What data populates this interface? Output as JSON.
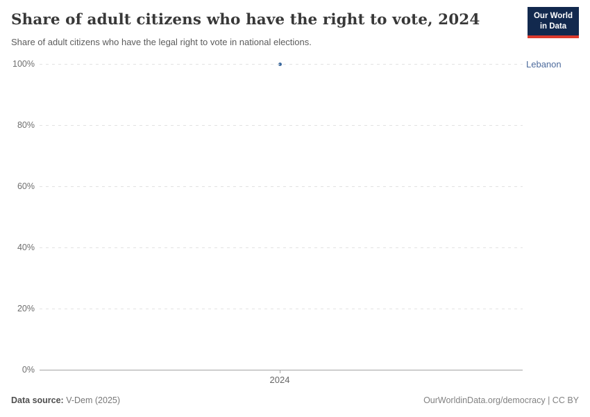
{
  "header": {
    "title": "Share of adult citizens who have the right to vote, 2024",
    "subtitle": "Share of adult citizens who have the legal right to vote in national elections.",
    "logo": {
      "line1": "Our World",
      "line2": "in Data"
    }
  },
  "chart_data": {
    "type": "scatter",
    "title": "Share of adult citizens who have the right to vote, 2024",
    "x": [
      2024
    ],
    "xtick_labels": [
      "2024"
    ],
    "series": [
      {
        "name": "Lebanon",
        "values": [
          100
        ]
      }
    ],
    "ylim": [
      0,
      100
    ],
    "yticks": [
      0,
      20,
      40,
      60,
      80,
      100
    ],
    "ytick_labels": [
      "0%",
      "20%",
      "40%",
      "60%",
      "80%",
      "100%"
    ],
    "grid": true,
    "legend_position": "right-of-point",
    "colors": {
      "point": "#3d6a9e",
      "entity_label": "#4c6a9c",
      "gridline": "#e2e2e2",
      "axis": "#a3a3a3"
    }
  },
  "footer": {
    "source_label": "Data source:",
    "source_value": " V-Dem (2025)",
    "credit": "OurWorldinData.org/democracy | CC BY"
  }
}
